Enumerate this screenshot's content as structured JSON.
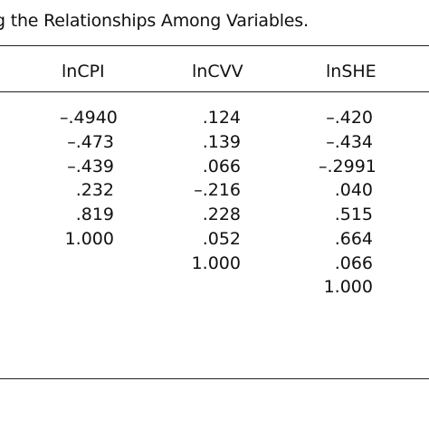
{
  "table": {
    "caption": "g the Relationships Among Variables.",
    "headers": [
      "lnCPI",
      "lnCVV",
      "lnSHE"
    ],
    "columns": {
      "lnCPI": [
        "–.4940",
        "–.473",
        "–.439",
        ".232",
        ".819",
        "1.000"
      ],
      "lnCVV": [
        ".124",
        ".139",
        ".066",
        "–.216",
        ".228",
        ".052",
        "1.000"
      ],
      "lnSHE": [
        "–.420",
        "–.434",
        "–.2991",
        ".040",
        ".515",
        ".664",
        ".066",
        "1.000"
      ]
    }
  }
}
